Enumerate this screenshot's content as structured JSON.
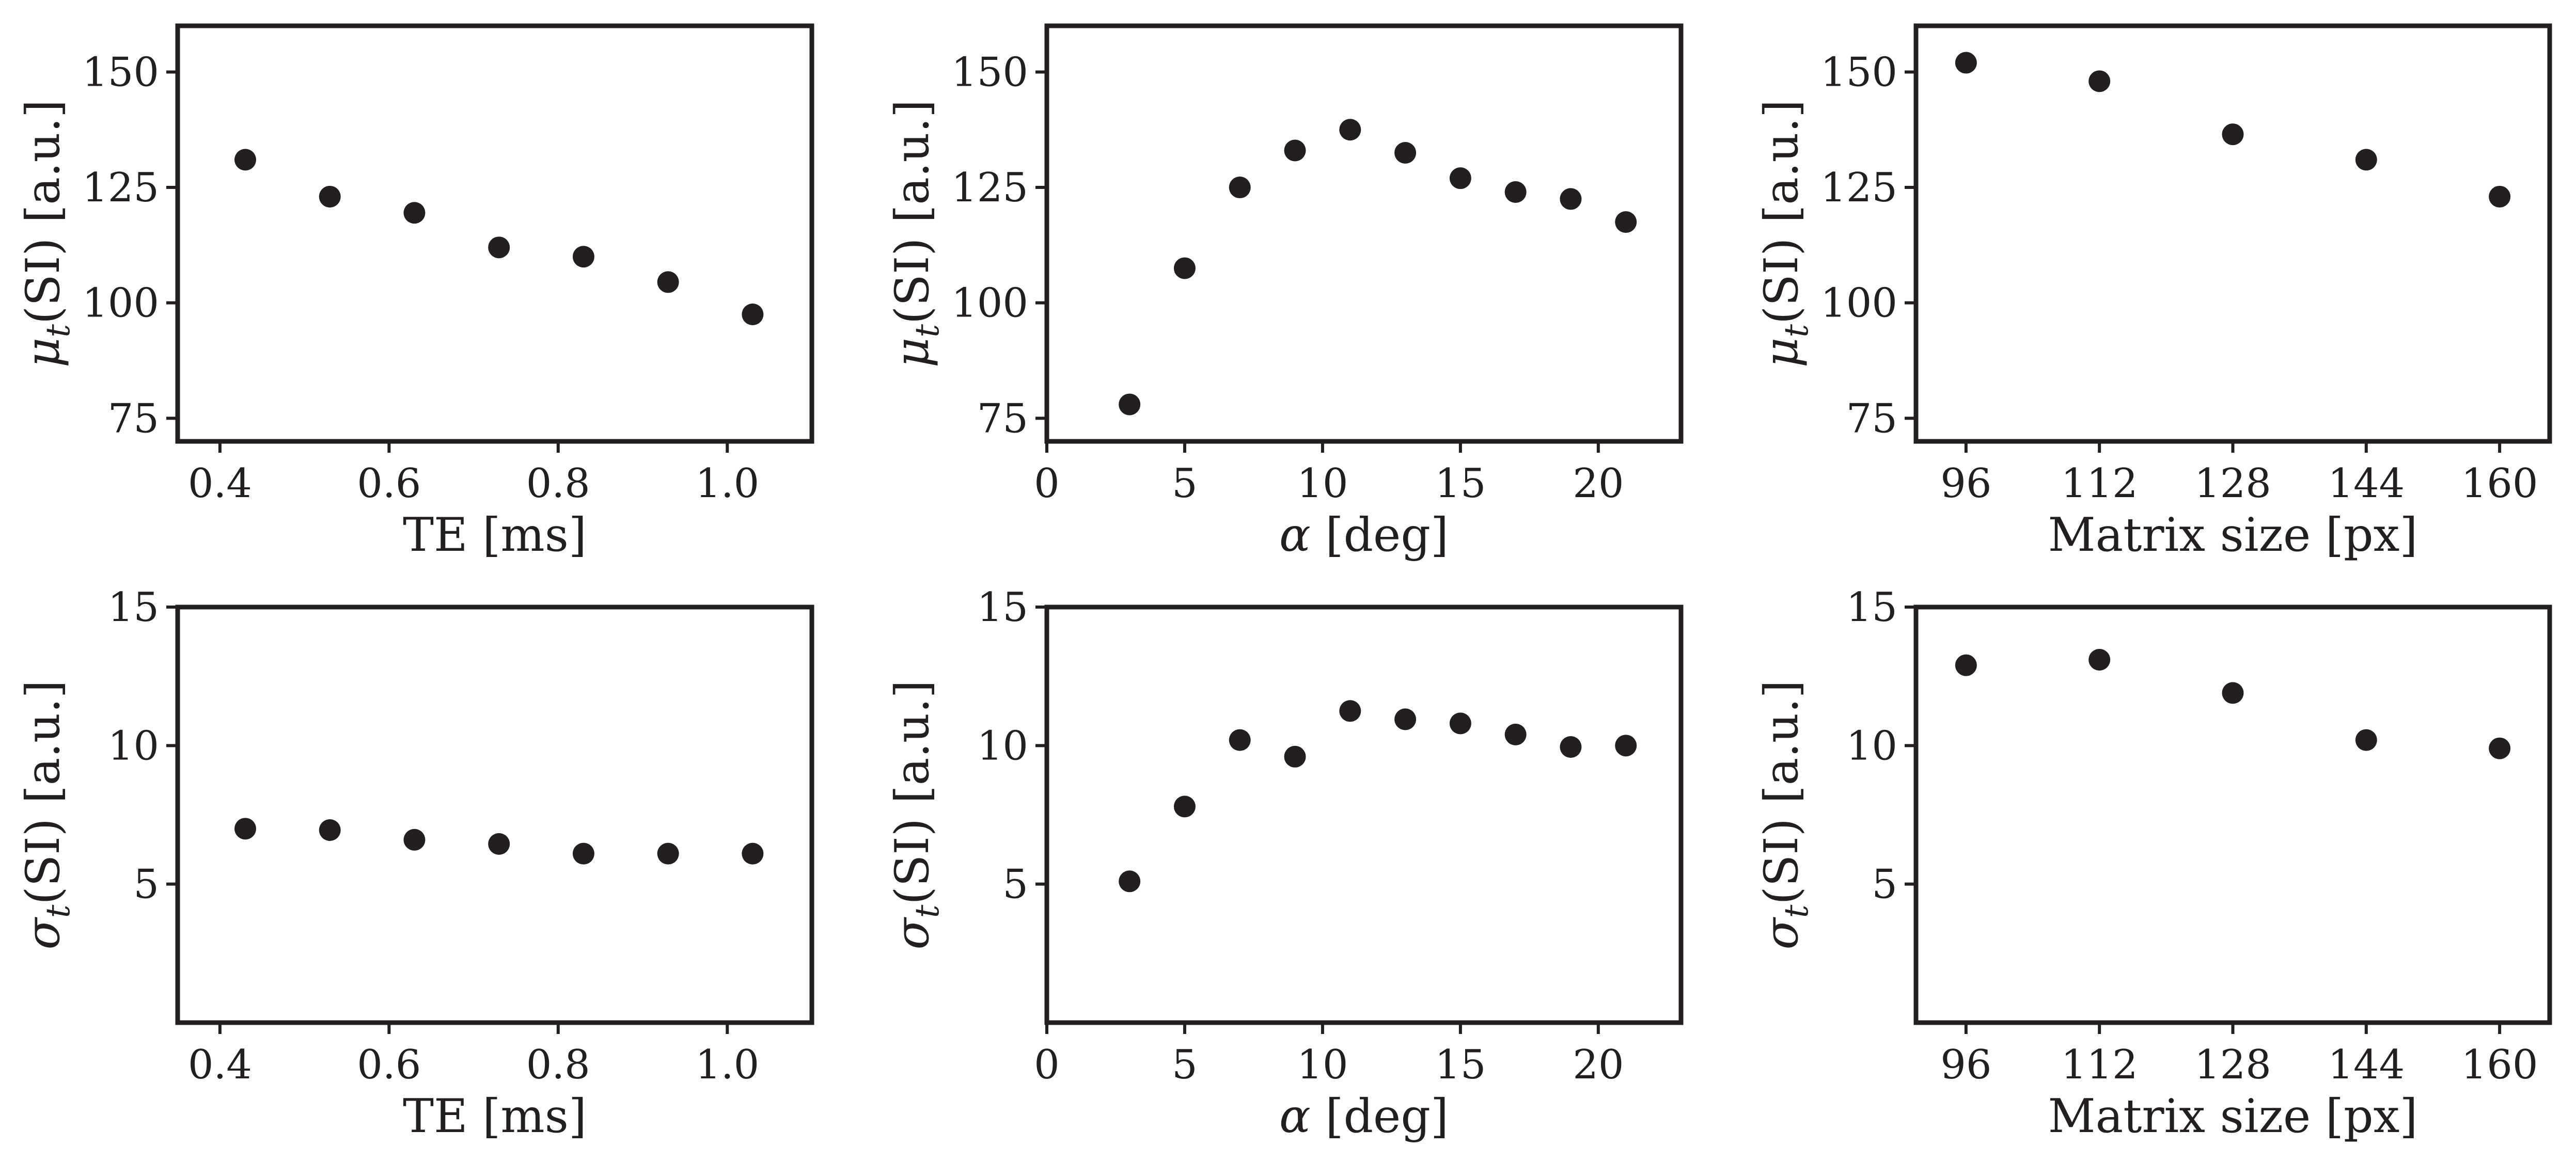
{
  "style": {
    "point_color": "#231f20",
    "axis_color": "#231f20",
    "background": "#ffffff"
  },
  "chart_data": [
    {
      "type": "scatter",
      "x": [
        0.43,
        0.53,
        0.63,
        0.73,
        0.83,
        0.93,
        1.03
      ],
      "y": [
        131,
        123,
        119.5,
        112,
        110,
        104.5,
        97.5
      ],
      "xlim": [
        0.35,
        1.1
      ],
      "ylim": [
        70,
        160
      ],
      "xticks": [
        0.4,
        0.6,
        0.8,
        1.0
      ],
      "xtick_labels": [
        "0.4",
        "0.6",
        "0.8",
        "1.0"
      ],
      "yticks": [
        75,
        100,
        125,
        150
      ],
      "ytick_labels": [
        "75",
        "100",
        "125",
        "150"
      ],
      "xlabel": "TE [ms]",
      "ylabel": {
        "sym": "μ",
        "sub": "t",
        "rest": "(SI) [a.u.]"
      },
      "grid": false
    },
    {
      "type": "scatter",
      "x": [
        3,
        5,
        7,
        9,
        11,
        13,
        15,
        17,
        19,
        21
      ],
      "y": [
        78,
        107.5,
        125,
        133,
        137.5,
        132.5,
        127,
        124,
        122.5,
        117.5
      ],
      "xlim": [
        0,
        23
      ],
      "ylim": [
        70,
        160
      ],
      "xticks": [
        0,
        5,
        10,
        15,
        20
      ],
      "xtick_labels": [
        "0",
        "5",
        "10",
        "15",
        "20"
      ],
      "yticks": [
        75,
        100,
        125,
        150
      ],
      "ytick_labels": [
        "75",
        "100",
        "125",
        "150"
      ],
      "xlabel": {
        "sym": "α",
        "rest": " [deg]"
      },
      "ylabel": {
        "sym": "μ",
        "sub": "t",
        "rest": "(SI) [a.u.]"
      },
      "grid": false
    },
    {
      "type": "scatter",
      "x": [
        96,
        112,
        128,
        144,
        160
      ],
      "y": [
        152,
        148,
        136.5,
        131,
        123
      ],
      "xlim": [
        90,
        166
      ],
      "ylim": [
        70,
        160
      ],
      "xticks": [
        96,
        112,
        128,
        144,
        160
      ],
      "xtick_labels": [
        "96",
        "112",
        "128",
        "144",
        "160"
      ],
      "yticks": [
        75,
        100,
        125,
        150
      ],
      "ytick_labels": [
        "75",
        "100",
        "125",
        "150"
      ],
      "xlabel": "Matrix size [px]",
      "ylabel": {
        "sym": "μ",
        "sub": "t",
        "rest": "(SI) [a.u.]"
      },
      "grid": false
    },
    {
      "type": "scatter",
      "x": [
        0.43,
        0.53,
        0.63,
        0.73,
        0.83,
        0.93,
        1.03
      ],
      "y": [
        7.0,
        6.95,
        6.6,
        6.45,
        6.1,
        6.1,
        6.1
      ],
      "xlim": [
        0.35,
        1.1
      ],
      "ylim": [
        0,
        15
      ],
      "xticks": [
        0.4,
        0.6,
        0.8,
        1.0
      ],
      "xtick_labels": [
        "0.4",
        "0.6",
        "0.8",
        "1.0"
      ],
      "yticks": [
        5,
        10,
        15
      ],
      "ytick_labels": [
        "5",
        "10",
        "15"
      ],
      "xlabel": "TE [ms]",
      "ylabel": {
        "sym": "σ",
        "sub": "t",
        "rest": "(SI) [a.u.]"
      },
      "grid": false
    },
    {
      "type": "scatter",
      "x": [
        3,
        5,
        7,
        9,
        11,
        13,
        15,
        17,
        19,
        21
      ],
      "y": [
        5.1,
        7.8,
        10.2,
        9.6,
        11.25,
        10.95,
        10.8,
        10.4,
        9.95,
        10.0
      ],
      "xlim": [
        0,
        23
      ],
      "ylim": [
        0,
        15
      ],
      "xticks": [
        0,
        5,
        10,
        15,
        20
      ],
      "xtick_labels": [
        "0",
        "5",
        "10",
        "15",
        "20"
      ],
      "yticks": [
        5,
        10,
        15
      ],
      "ytick_labels": [
        "5",
        "10",
        "15"
      ],
      "xlabel": {
        "sym": "α",
        "rest": " [deg]"
      },
      "ylabel": {
        "sym": "σ",
        "sub": "t",
        "rest": "(SI) [a.u.]"
      },
      "grid": false
    },
    {
      "type": "scatter",
      "x": [
        96,
        112,
        128,
        144,
        160
      ],
      "y": [
        12.9,
        13.1,
        11.9,
        10.2,
        9.9
      ],
      "xlim": [
        90,
        166
      ],
      "ylim": [
        0,
        15
      ],
      "xticks": [
        96,
        112,
        128,
        144,
        160
      ],
      "xtick_labels": [
        "96",
        "112",
        "128",
        "144",
        "160"
      ],
      "yticks": [
        5,
        10,
        15
      ],
      "ytick_labels": [
        "5",
        "10",
        "15"
      ],
      "xlabel": "Matrix size [px]",
      "ylabel": {
        "sym": "σ",
        "sub": "t",
        "rest": "(SI) [a.u.]"
      },
      "grid": false
    }
  ]
}
